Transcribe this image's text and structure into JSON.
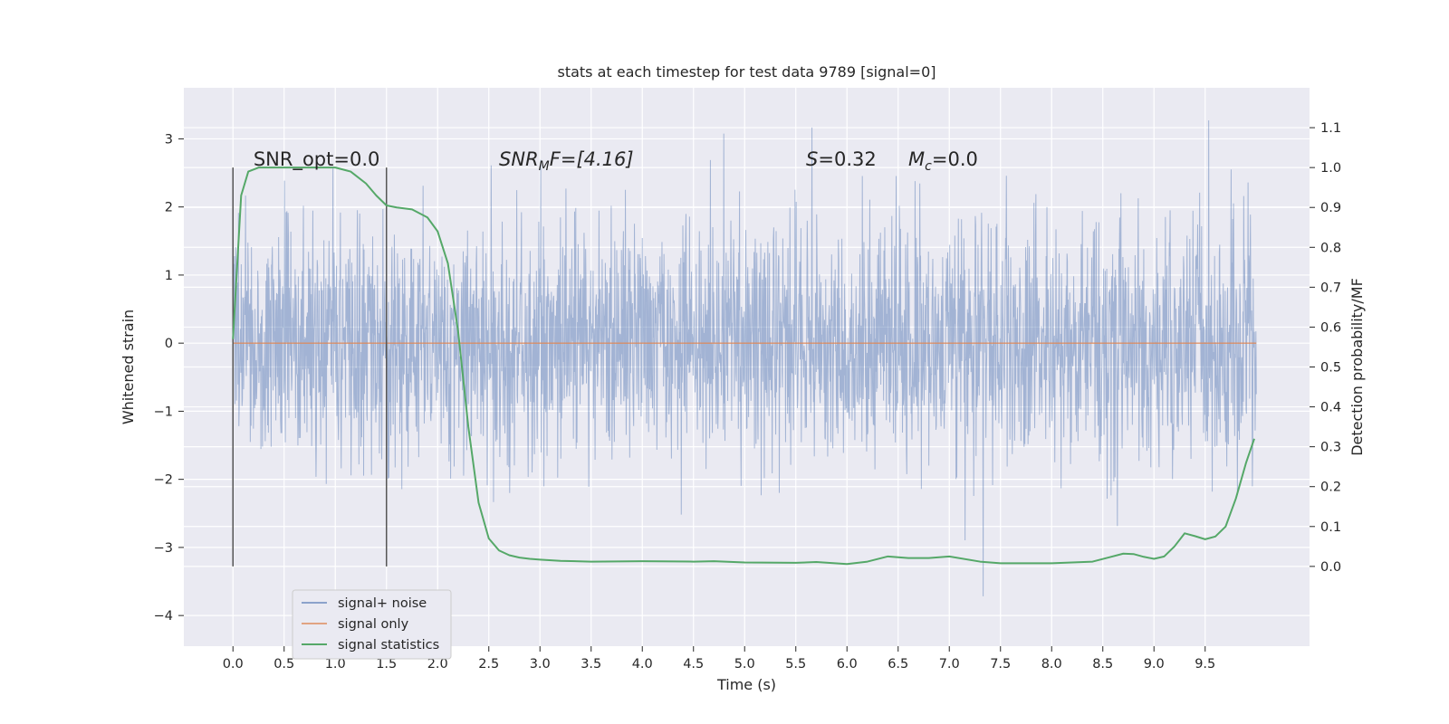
{
  "chart_data": {
    "type": "line",
    "title": "stats at each timestep for test data 9789 [signal=0]",
    "xlabel": "Time (s)",
    "ylabel": "Whitened strain",
    "y2label": "Detection probability/MF",
    "xlim": [
      -0.48,
      10.52
    ],
    "ylim": [
      -4.45,
      3.75
    ],
    "y2lim": [
      -0.2,
      1.2
    ],
    "x_ticks": [
      "0.0",
      "0.5",
      "1.0",
      "1.5",
      "2.0",
      "2.5",
      "3.0",
      "3.5",
      "4.0",
      "4.5",
      "5.0",
      "5.5",
      "6.0",
      "6.5",
      "7.0",
      "7.5",
      "8.0",
      "8.5",
      "9.0",
      "9.5"
    ],
    "y_ticks": [
      "3",
      "2",
      "1",
      "0",
      "−1",
      "−2",
      "−3",
      "−4"
    ],
    "y2_ticks": [
      "1.1",
      "1.0",
      "0.9",
      "0.8",
      "0.7",
      "0.6",
      "0.5",
      "0.4",
      "0.3",
      "0.2",
      "0.1",
      "0.0"
    ],
    "grid": true,
    "legend_position": "lower-left",
    "colors": {
      "background": "#eaeaf2",
      "grid": "#ffffff",
      "noise": "#4c72b0",
      "signal": "#dd8452",
      "statistics": "#55a868",
      "markers": "#555555"
    },
    "annotations": {
      "snr_opt": "SNR_opt=0.0",
      "snr_mf_name": "SNR",
      "snr_mf_sub": "M",
      "snr_mf_rest": "F=[4.16]",
      "s_name": "S",
      "s_rest": "=0.32",
      "mc_name": "M",
      "mc_sub": "c",
      "mc_rest": "=0.0"
    },
    "vertical_markers_x": [
      0.0,
      1.5
    ],
    "series": [
      {
        "name": "signal+ noise",
        "kind": "noise",
        "x_range": [
          0,
          10
        ],
        "std": 0.9,
        "abs_max": 3.45
      },
      {
        "name": "signal only",
        "kind": "flat",
        "x": [
          0,
          10
        ],
        "y": [
          0,
          0
        ]
      },
      {
        "name": "signal statistics",
        "kind": "line",
        "x": [
          0.0,
          0.08,
          0.15,
          0.25,
          0.4,
          0.6,
          0.8,
          1.0,
          1.15,
          1.3,
          1.4,
          1.5,
          1.6,
          1.75,
          1.9,
          2.0,
          2.1,
          2.2,
          2.3,
          2.4,
          2.5,
          2.6,
          2.7,
          2.8,
          2.9,
          3.0,
          3.2,
          3.5,
          4.0,
          4.5,
          4.7,
          5.0,
          5.5,
          5.7,
          6.0,
          6.2,
          6.4,
          6.6,
          6.8,
          7.0,
          7.3,
          7.5,
          8.0,
          8.4,
          8.55,
          8.7,
          8.8,
          8.9,
          9.0,
          9.1,
          9.2,
          9.3,
          9.4,
          9.5,
          9.6,
          9.7,
          9.8,
          9.9,
          9.98
        ],
        "y": [
          0.57,
          0.93,
          0.99,
          1.0,
          1.0,
          1.0,
          1.0,
          1.0,
          0.99,
          0.96,
          0.93,
          0.905,
          0.9,
          0.895,
          0.875,
          0.84,
          0.76,
          0.59,
          0.35,
          0.16,
          0.07,
          0.04,
          0.028,
          0.022,
          0.019,
          0.017,
          0.014,
          0.012,
          0.013,
          0.012,
          0.013,
          0.01,
          0.009,
          0.011,
          0.006,
          0.012,
          0.025,
          0.021,
          0.021,
          0.025,
          0.012,
          0.008,
          0.008,
          0.012,
          0.022,
          0.032,
          0.031,
          0.024,
          0.019,
          0.025,
          0.05,
          0.083,
          0.076,
          0.068,
          0.075,
          0.1,
          0.17,
          0.26,
          0.32
        ]
      }
    ]
  }
}
